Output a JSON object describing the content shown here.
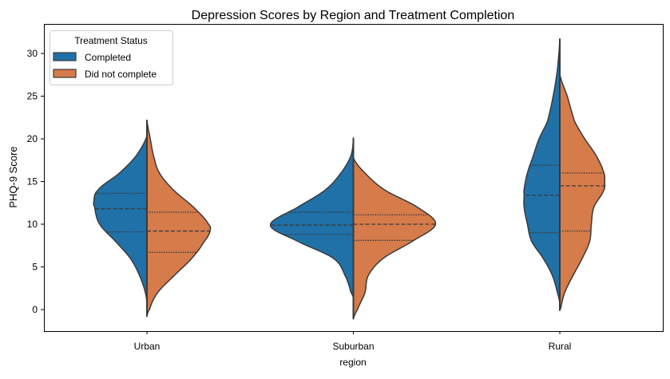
{
  "chart_data": {
    "type": "violin",
    "split": true,
    "title": "Depression Scores by Region and Treatment Completion",
    "xlabel": "region",
    "ylabel": "PHQ-9 Score",
    "categories": [
      "Urban",
      "Suburban",
      "Rural"
    ],
    "ylim": [
      -2.5,
      33
    ],
    "yticks": [
      0,
      5,
      10,
      15,
      20,
      25,
      30
    ],
    "grid": false,
    "legend": {
      "title": "Treatment Status",
      "placement": "top-left"
    },
    "colors": {
      "Completed": "#1f71a8",
      "Did not complete": "#d67b4a",
      "outline": "#3a3a3a"
    },
    "series": [
      {
        "name": "Completed",
        "side": "left",
        "violins": [
          {
            "category": "Urban",
            "quartiles": [
              9.1,
              11.8,
              13.6
            ],
            "profile": [
              [
                0.6,
                0
              ],
              [
                2,
                0.02
              ],
              [
                4,
                0.09
              ],
              [
                6,
                0.2
              ],
              [
                8,
                0.38
              ],
              [
                10,
                0.57
              ],
              [
                12,
                0.63
              ],
              [
                12.6,
                0.64
              ],
              [
                14,
                0.59
              ],
              [
                16,
                0.33
              ],
              [
                18,
                0.13
              ],
              [
                20.4,
                0
              ]
            ]
          },
          {
            "category": "Suburban",
            "quartiles": [
              8.8,
              9.9,
              11.4
            ],
            "profile": [
              [
                1.4,
                0
              ],
              [
                2,
                0.03
              ],
              [
                4,
                0.1
              ],
              [
                6,
                0.24
              ],
              [
                8,
                0.67
              ],
              [
                9.9,
                1.0
              ],
              [
                12,
                0.67
              ],
              [
                14,
                0.34
              ],
              [
                16,
                0.15
              ],
              [
                18,
                0.03
              ],
              [
                20.1,
                0
              ]
            ]
          },
          {
            "category": "Rural",
            "quartiles": [
              9.0,
              13.4,
              16.9
            ],
            "profile": [
              [
                0.7,
                0
              ],
              [
                2,
                0.03
              ],
              [
                4,
                0.09
              ],
              [
                6,
                0.2
              ],
              [
                8,
                0.34
              ],
              [
                10,
                0.39
              ],
              [
                12,
                0.43
              ],
              [
                13.4,
                0.43
              ],
              [
                14,
                0.43
              ],
              [
                16,
                0.39
              ],
              [
                18,
                0.32
              ],
              [
                20,
                0.25
              ],
              [
                22,
                0.15
              ],
              [
                25,
                0.08
              ],
              [
                28,
                0.03
              ],
              [
                31.7,
                0
              ]
            ]
          }
        ]
      },
      {
        "name": "Did not complete",
        "side": "right",
        "violins": [
          {
            "category": "Urban",
            "quartiles": [
              6.7,
              9.2,
              11.4
            ],
            "profile": [
              [
                -0.8,
                0
              ],
              [
                0,
                0.03
              ],
              [
                2,
                0.13
              ],
              [
                4,
                0.33
              ],
              [
                6,
                0.54
              ],
              [
                8,
                0.69
              ],
              [
                9.2,
                0.76
              ],
              [
                10,
                0.74
              ],
              [
                12,
                0.56
              ],
              [
                14,
                0.32
              ],
              [
                16,
                0.15
              ],
              [
                18,
                0.08
              ],
              [
                20,
                0.04
              ],
              [
                22.2,
                0
              ]
            ]
          },
          {
            "category": "Suburban",
            "quartiles": [
              8.1,
              10.0,
              11.1
            ],
            "profile": [
              [
                -1.1,
                0
              ],
              [
                0,
                0.05
              ],
              [
                2,
                0.14
              ],
              [
                4,
                0.18
              ],
              [
                6,
                0.36
              ],
              [
                8,
                0.71
              ],
              [
                10,
                0.99
              ],
              [
                12,
                0.77
              ],
              [
                14,
                0.38
              ],
              [
                16,
                0.14
              ],
              [
                17.8,
                0
              ]
            ]
          },
          {
            "category": "Rural",
            "quartiles": [
              9.2,
              14.5,
              16.0
            ],
            "profile": [
              [
                -0.1,
                0
              ],
              [
                0,
                0.01
              ],
              [
                2,
                0.06
              ],
              [
                4,
                0.16
              ],
              [
                6,
                0.27
              ],
              [
                8,
                0.36
              ],
              [
                10,
                0.38
              ],
              [
                12,
                0.41
              ],
              [
                14,
                0.53
              ],
              [
                15,
                0.54
              ],
              [
                16,
                0.53
              ],
              [
                18,
                0.44
              ],
              [
                20,
                0.3
              ],
              [
                22,
                0.18
              ],
              [
                25,
                0.09
              ],
              [
                27.6,
                0
              ]
            ]
          }
        ]
      }
    ]
  }
}
